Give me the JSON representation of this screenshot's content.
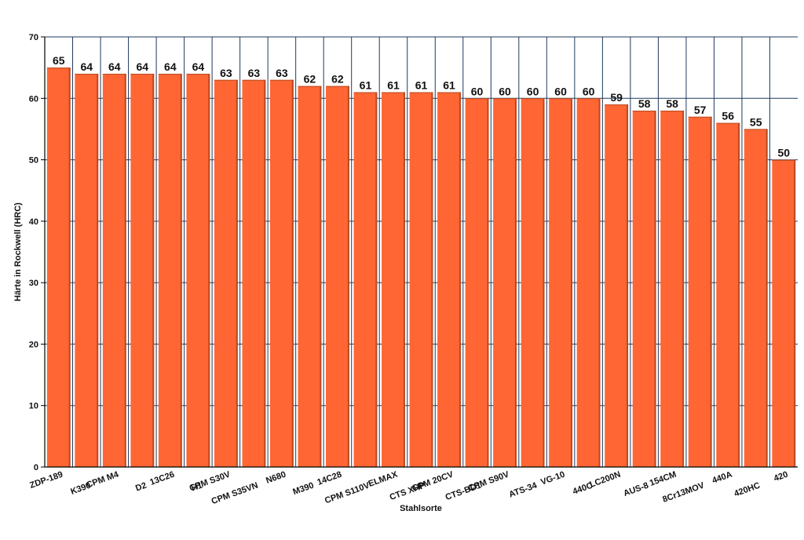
{
  "chart_data": {
    "type": "bar",
    "xlabel": "Stahlsorte",
    "ylabel": "Härte in Rockwell (HRC)",
    "ylim": [
      0,
      70
    ],
    "yticks": [
      0,
      10,
      20,
      30,
      40,
      50,
      60,
      70
    ],
    "grid": true,
    "colors": {
      "bar": "#ff6633",
      "grid": "#1f3a5f",
      "axis": "#000000"
    },
    "categories": [
      "ZDP-189",
      "K390",
      "CPM M4",
      "D2",
      "13C26",
      "H1",
      "CPM S30V",
      "CPM S35VN",
      "N680",
      "M390",
      "14C28",
      "CPM S110V",
      "ELMAX",
      "CTS XHP",
      "CPM 20CV",
      "CTS-BD1",
      "CPM S90V",
      "ATS-34",
      "VG-10",
      "440C",
      "LC200N",
      "AUS-8",
      "154CM",
      "8Cr13MOV",
      "440A",
      "420HC",
      "420"
    ],
    "values": [
      65,
      64,
      64,
      64,
      64,
      64,
      63,
      63,
      63,
      62,
      62,
      61,
      61,
      61,
      61,
      60,
      60,
      60,
      60,
      60,
      59,
      58,
      58,
      57,
      56,
      55,
      50
    ]
  }
}
